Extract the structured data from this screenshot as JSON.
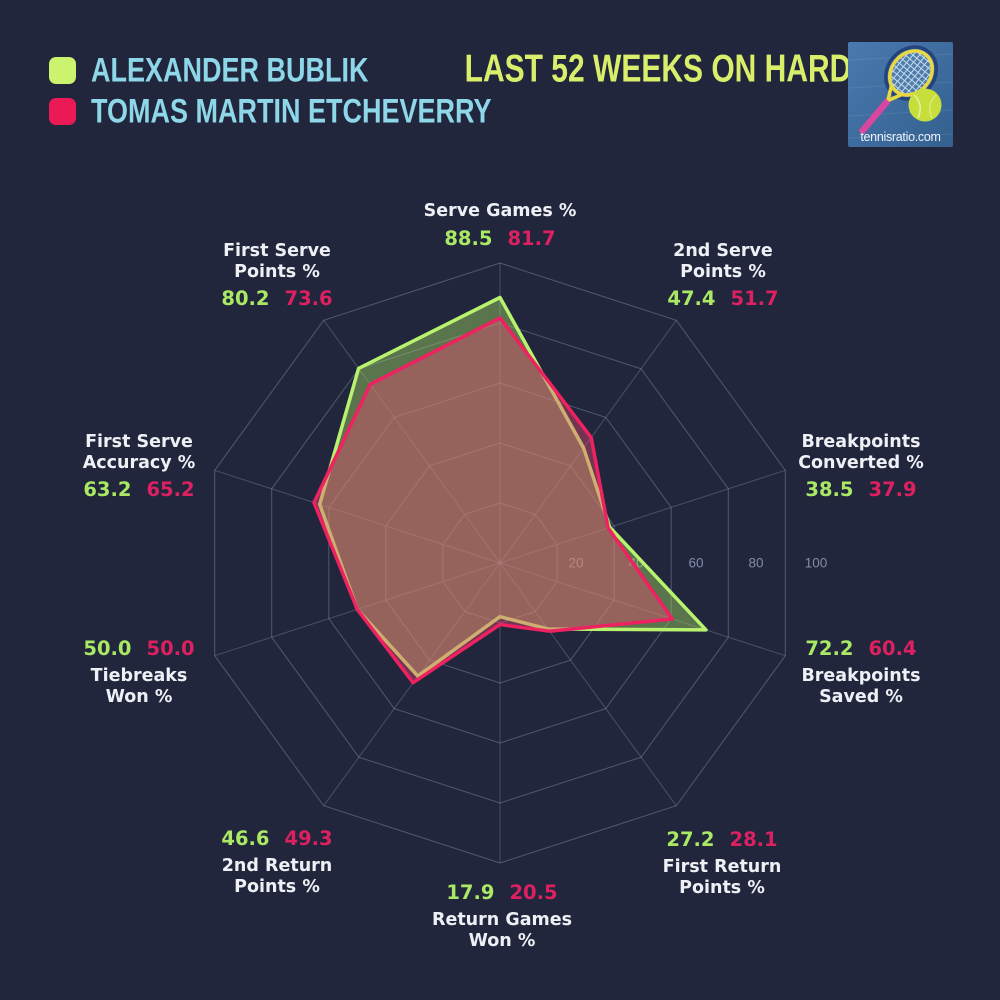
{
  "header": {
    "title": "LAST 52 WEEKS ON HARD",
    "legend": [
      {
        "name": "ALEXANDER BUBLIK",
        "swatch_color": "#cbf36e"
      },
      {
        "name": "TOMAS MARTIN ETCHEVERRY",
        "swatch_color": "#eb1a57"
      }
    ],
    "logo": {
      "caption": "tennisratio.com"
    }
  },
  "chart_data": {
    "type": "radar",
    "title": "LAST 52 WEEKS ON HARD",
    "axis_range": [
      0,
      100
    ],
    "tick_labels": [
      20,
      40,
      60,
      80,
      100
    ],
    "grid": true,
    "legend_position": "top-left",
    "categories": [
      "Serve Games %",
      "2nd Serve\nPoints %",
      "Breakpoints\nConverted %",
      "Breakpoints\nSaved %",
      "First Return\nPoints %",
      "Return Games\nWon %",
      "2nd Return\nPoints %",
      "Tiebreaks\nWon %",
      "First Serve\nAccuracy %",
      "First Serve\nPoints %"
    ],
    "series": [
      {
        "name": "ALEXANDER BUBLIK",
        "stroke": "#b8f26f",
        "fill": "rgba(170,225,100,0.42)",
        "value_color": "#a9e964",
        "values": [
          88.5,
          47.4,
          38.5,
          72.2,
          27.2,
          17.9,
          46.6,
          50.0,
          63.2,
          80.2
        ]
      },
      {
        "name": "TOMAS MARTIN ETCHEVERRY",
        "stroke": "#ee2161",
        "fill": "rgba(240,75,118,0.40)",
        "value_color": "#dc2060",
        "values": [
          81.7,
          51.7,
          37.9,
          60.4,
          28.1,
          20.5,
          49.3,
          50.0,
          65.2,
          73.6
        ]
      }
    ]
  }
}
